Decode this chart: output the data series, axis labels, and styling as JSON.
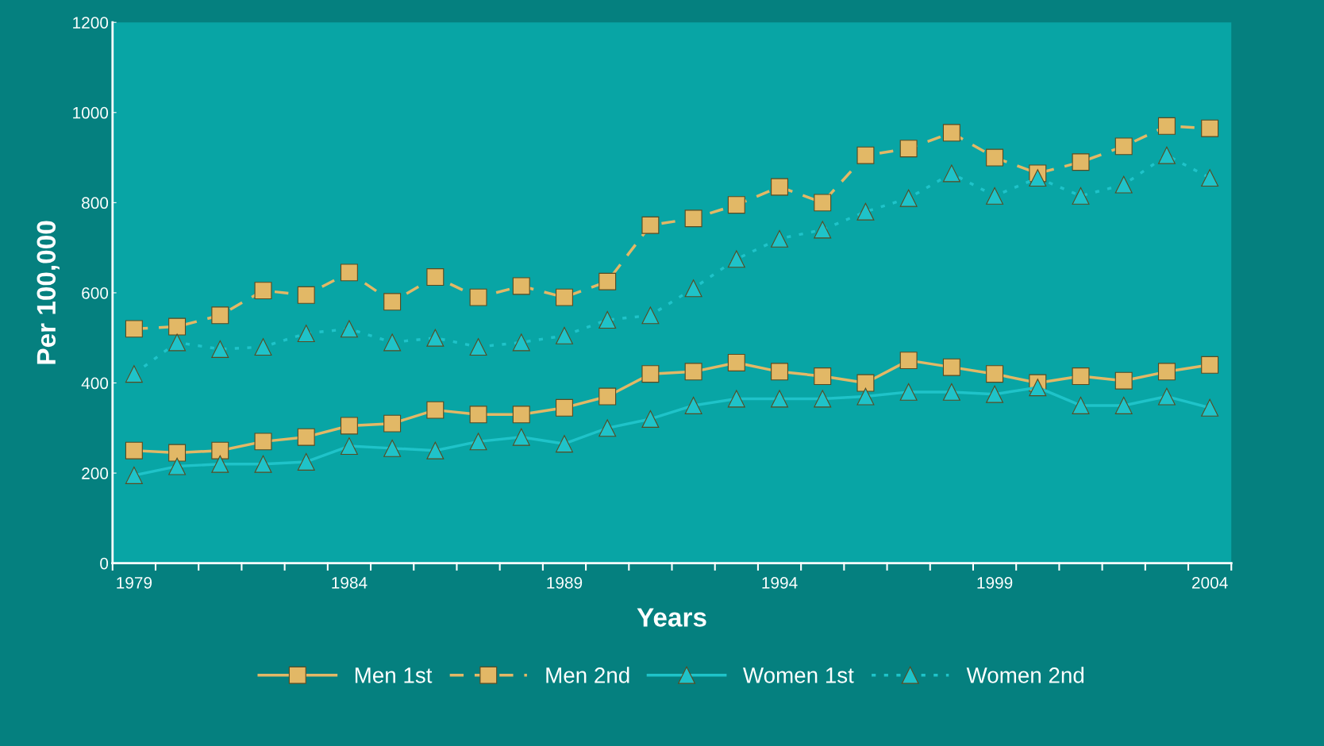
{
  "chart_data": {
    "type": "line",
    "xlabel": "Years",
    "ylabel": "Per 100,000",
    "categories": [
      "1979",
      null,
      null,
      null,
      null,
      "1984",
      null,
      null,
      null,
      null,
      "1989",
      null,
      null,
      null,
      null,
      "1994",
      null,
      null,
      null,
      null,
      "1999",
      null,
      null,
      null,
      null,
      "2004"
    ],
    "series": [
      {
        "name": "Men 1st",
        "color": "#e2b866",
        "marker": "square",
        "line_style": "solid",
        "values": [
          250,
          245,
          250,
          270,
          280,
          305,
          310,
          340,
          330,
          330,
          345,
          370,
          420,
          425,
          445,
          425,
          415,
          400,
          450,
          435,
          420,
          400,
          415,
          405,
          425,
          440
        ]
      },
      {
        "name": "Men 2nd",
        "color": "#e2b866",
        "marker": "square",
        "line_style": "dashed",
        "values": [
          520,
          525,
          550,
          605,
          595,
          645,
          580,
          635,
          590,
          615,
          590,
          625,
          750,
          765,
          795,
          835,
          800,
          905,
          920,
          955,
          900,
          865,
          890,
          925,
          970,
          965
        ]
      },
      {
        "name": "Women 1st",
        "color": "#1fc3c9",
        "marker": "triangle",
        "line_style": "solid",
        "values": [
          195,
          215,
          220,
          220,
          225,
          260,
          255,
          250,
          270,
          280,
          265,
          300,
          320,
          350,
          365,
          365,
          365,
          370,
          380,
          380,
          375,
          390,
          350,
          350,
          370,
          345
        ]
      },
      {
        "name": "Women 2nd",
        "color": "#1fc3c9",
        "marker": "triangle",
        "line_style": "dotted",
        "values": [
          420,
          490,
          475,
          480,
          510,
          520,
          490,
          500,
          480,
          490,
          505,
          540,
          550,
          610,
          675,
          720,
          740,
          780,
          810,
          865,
          815,
          855,
          815,
          840,
          905,
          855
        ]
      }
    ],
    "ylim": [
      0,
      1200
    ],
    "yticks": [
      0,
      200,
      400,
      600,
      800,
      1000,
      1200
    ],
    "grid": false,
    "legend": "bottom"
  }
}
